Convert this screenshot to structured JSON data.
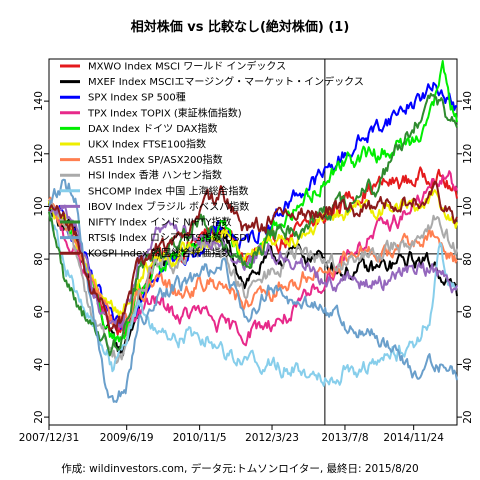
{
  "chart_data": {
    "type": "line",
    "title": "相対株価 vs 比較なし(絶対株価) (1)",
    "footer": "作成: wildinvestors.com, データ元:トムソンロイター, 最終日: 2015/8/20",
    "xlabel": "",
    "ylabel": "",
    "ylim": [
      17,
      156
    ],
    "yticks": [
      20,
      40,
      60,
      80,
      100,
      120,
      140
    ],
    "xlim": [
      0,
      7.72
    ],
    "xticks": [
      {
        "t": 0.0,
        "label": "2007/12/31"
      },
      {
        "t": 1.47,
        "label": "2009/6/19"
      },
      {
        "t": 2.85,
        "label": "2010/11/5"
      },
      {
        "t": 4.22,
        "label": "2012/3/23"
      },
      {
        "t": 5.6,
        "label": "2013/7/8"
      },
      {
        "t": 6.9,
        "label": "2014/11/24"
      }
    ],
    "reference_lines": {
      "h": 82,
      "v_t": 5.22
    },
    "grid": false,
    "legend_position": "top-left",
    "series": [
      {
        "name": "MXWO Index MSCI ワールド インデックス",
        "color": "#e41a1c",
        "width": 2,
        "points": [
          [
            0,
            100
          ],
          [
            0.5,
            90
          ],
          [
            0.8,
            70
          ],
          [
            1.2,
            55
          ],
          [
            1.4,
            52
          ],
          [
            1.7,
            65
          ],
          [
            2.0,
            80
          ],
          [
            2.5,
            83
          ],
          [
            2.85,
            88
          ],
          [
            3.3,
            92
          ],
          [
            3.7,
            80
          ],
          [
            4.2,
            85
          ],
          [
            4.7,
            90
          ],
          [
            5.2,
            95
          ],
          [
            5.6,
            103
          ],
          [
            6.2,
            108
          ],
          [
            6.9,
            110
          ],
          [
            7.3,
            113
          ],
          [
            7.55,
            108
          ],
          [
            7.72,
            103
          ]
        ]
      },
      {
        "name": "MXEF Index MSCIエマージング・マーケット・インデックス",
        "color": "#000000",
        "width": 2,
        "points": [
          [
            0,
            100
          ],
          [
            0.5,
            88
          ],
          [
            0.8,
            68
          ],
          [
            1.2,
            48
          ],
          [
            1.4,
            45
          ],
          [
            1.7,
            62
          ],
          [
            2.0,
            78
          ],
          [
            2.5,
            82
          ],
          [
            2.85,
            86
          ],
          [
            3.3,
            88
          ],
          [
            3.7,
            72
          ],
          [
            4.2,
            80
          ],
          [
            4.7,
            82
          ],
          [
            5.2,
            80
          ],
          [
            5.6,
            75
          ],
          [
            6.2,
            76
          ],
          [
            6.9,
            80
          ],
          [
            7.3,
            78
          ],
          [
            7.55,
            72
          ],
          [
            7.72,
            66
          ]
        ]
      },
      {
        "name": "SPX Index SP 500種",
        "color": "#0000ff",
        "width": 2,
        "points": [
          [
            0,
            100
          ],
          [
            0.5,
            90
          ],
          [
            0.8,
            72
          ],
          [
            1.2,
            55
          ],
          [
            1.4,
            52
          ],
          [
            1.7,
            66
          ],
          [
            2.0,
            76
          ],
          [
            2.5,
            80
          ],
          [
            2.85,
            85
          ],
          [
            3.3,
            92
          ],
          [
            3.7,
            85
          ],
          [
            4.2,
            95
          ],
          [
            4.7,
            105
          ],
          [
            5.2,
            112
          ],
          [
            5.6,
            120
          ],
          [
            6.2,
            130
          ],
          [
            6.9,
            140
          ],
          [
            7.3,
            145
          ],
          [
            7.55,
            143
          ],
          [
            7.72,
            138
          ]
        ]
      },
      {
        "name": "TPX Index TOPIX (東証株価指数)",
        "color": "#e7298a",
        "width": 2,
        "points": [
          [
            0,
            100
          ],
          [
            0.5,
            82
          ],
          [
            0.8,
            70
          ],
          [
            1.2,
            54
          ],
          [
            1.4,
            52
          ],
          [
            1.7,
            60
          ],
          [
            2.0,
            64
          ],
          [
            2.5,
            58
          ],
          [
            2.85,
            60
          ],
          [
            3.3,
            54
          ],
          [
            3.7,
            52
          ],
          [
            4.2,
            56
          ],
          [
            4.7,
            60
          ],
          [
            5.2,
            72
          ],
          [
            5.6,
            82
          ],
          [
            6.2,
            90
          ],
          [
            6.9,
            100
          ],
          [
            7.3,
            108
          ],
          [
            7.55,
            112
          ],
          [
            7.72,
            106
          ]
        ]
      },
      {
        "name": "DAX Index ドイツ DAX指数",
        "color": "#00ee00",
        "width": 2,
        "points": [
          [
            0,
            100
          ],
          [
            0.5,
            88
          ],
          [
            0.8,
            70
          ],
          [
            1.2,
            50
          ],
          [
            1.4,
            48
          ],
          [
            1.7,
            66
          ],
          [
            2.0,
            75
          ],
          [
            2.5,
            80
          ],
          [
            2.85,
            88
          ],
          [
            3.3,
            95
          ],
          [
            3.7,
            76
          ],
          [
            4.2,
            90
          ],
          [
            4.7,
            100
          ],
          [
            5.2,
            110
          ],
          [
            5.6,
            118
          ],
          [
            6.2,
            120
          ],
          [
            6.9,
            125
          ],
          [
            7.3,
            140
          ],
          [
            7.45,
            152
          ],
          [
            7.6,
            140
          ],
          [
            7.72,
            132
          ]
        ]
      },
      {
        "name": "UKX Index FTSE100指数",
        "color": "#eeee00",
        "width": 2,
        "points": [
          [
            0,
            100
          ],
          [
            0.5,
            88
          ],
          [
            0.8,
            74
          ],
          [
            1.2,
            62
          ],
          [
            1.4,
            60
          ],
          [
            1.7,
            72
          ],
          [
            2.0,
            80
          ],
          [
            2.5,
            82
          ],
          [
            2.85,
            86
          ],
          [
            3.3,
            90
          ],
          [
            3.7,
            82
          ],
          [
            4.2,
            88
          ],
          [
            4.7,
            90
          ],
          [
            5.2,
            94
          ],
          [
            5.6,
            98
          ],
          [
            6.2,
            100
          ],
          [
            6.9,
            100
          ],
          [
            7.3,
            104
          ],
          [
            7.55,
            98
          ],
          [
            7.72,
            94
          ]
        ]
      },
      {
        "name": "AS51 Index SP/ASX200指数",
        "color": "#ff7f50",
        "width": 2,
        "points": [
          [
            0,
            100
          ],
          [
            0.5,
            86
          ],
          [
            0.8,
            72
          ],
          [
            1.2,
            56
          ],
          [
            1.4,
            56
          ],
          [
            1.7,
            66
          ],
          [
            2.0,
            70
          ],
          [
            2.5,
            68
          ],
          [
            2.85,
            70
          ],
          [
            3.3,
            72
          ],
          [
            3.7,
            62
          ],
          [
            4.2,
            66
          ],
          [
            4.7,
            72
          ],
          [
            5.2,
            76
          ],
          [
            5.6,
            80
          ],
          [
            6.2,
            82
          ],
          [
            6.9,
            86
          ],
          [
            7.3,
            88
          ],
          [
            7.55,
            82
          ],
          [
            7.72,
            80
          ]
        ]
      },
      {
        "name": "HSI Index 香港 ハンセン指数",
        "color": "#aaaaaa",
        "width": 2,
        "points": [
          [
            0,
            100
          ],
          [
            0.5,
            85
          ],
          [
            0.8,
            60
          ],
          [
            1.2,
            44
          ],
          [
            1.4,
            44
          ],
          [
            1.7,
            66
          ],
          [
            2.0,
            78
          ],
          [
            2.5,
            78
          ],
          [
            2.85,
            84
          ],
          [
            3.3,
            84
          ],
          [
            3.7,
            66
          ],
          [
            4.2,
            75
          ],
          [
            4.7,
            82
          ],
          [
            5.2,
            80
          ],
          [
            5.6,
            78
          ],
          [
            6.2,
            82
          ],
          [
            6.9,
            88
          ],
          [
            7.3,
            96
          ],
          [
            7.55,
            88
          ],
          [
            7.72,
            84
          ]
        ]
      },
      {
        "name": "SHCOMP Index 中国 上海総合指数",
        "color": "#87ceeb",
        "width": 2,
        "points": [
          [
            0,
            100
          ],
          [
            0.3,
            80
          ],
          [
            0.6,
            62
          ],
          [
            0.9,
            52
          ],
          [
            1.2,
            40
          ],
          [
            1.4,
            50
          ],
          [
            1.7,
            60
          ],
          [
            2.0,
            54
          ],
          [
            2.5,
            50
          ],
          [
            2.85,
            52
          ],
          [
            3.3,
            46
          ],
          [
            3.7,
            42
          ],
          [
            4.2,
            40
          ],
          [
            4.7,
            38
          ],
          [
            5.2,
            36
          ],
          [
            5.6,
            38
          ],
          [
            6.2,
            40
          ],
          [
            6.9,
            48
          ],
          [
            7.2,
            58
          ],
          [
            7.4,
            84
          ],
          [
            7.55,
            72
          ],
          [
            7.72,
            70
          ]
        ]
      },
      {
        "name": "IBOV Index ブラジル ボベスパ指数",
        "color": "#9467bd",
        "width": 2,
        "points": [
          [
            0,
            100
          ],
          [
            0.5,
            95
          ],
          [
            0.8,
            70
          ],
          [
            1.2,
            54
          ],
          [
            1.4,
            56
          ],
          [
            1.7,
            78
          ],
          [
            2.0,
            90
          ],
          [
            2.5,
            92
          ],
          [
            2.85,
            90
          ],
          [
            3.3,
            86
          ],
          [
            3.7,
            78
          ],
          [
            4.2,
            84
          ],
          [
            4.7,
            80
          ],
          [
            5.2,
            72
          ],
          [
            5.6,
            72
          ],
          [
            6.2,
            70
          ],
          [
            6.9,
            78
          ],
          [
            7.3,
            76
          ],
          [
            7.55,
            72
          ],
          [
            7.72,
            70
          ]
        ]
      },
      {
        "name": "NIFTY Index インド NIFTY指数",
        "color": "#2e8b2e",
        "width": 2,
        "points": [
          [
            0,
            100
          ],
          [
            0.3,
            72
          ],
          [
            0.6,
            62
          ],
          [
            0.9,
            50
          ],
          [
            1.2,
            46
          ],
          [
            1.4,
            52
          ],
          [
            1.7,
            75
          ],
          [
            2.0,
            82
          ],
          [
            2.5,
            88
          ],
          [
            2.85,
            96
          ],
          [
            3.3,
            86
          ],
          [
            3.7,
            78
          ],
          [
            4.2,
            88
          ],
          [
            4.7,
            92
          ],
          [
            5.2,
            98
          ],
          [
            5.6,
            100
          ],
          [
            6.2,
            108
          ],
          [
            6.9,
            132
          ],
          [
            7.3,
            140
          ],
          [
            7.55,
            134
          ],
          [
            7.72,
            130
          ]
        ]
      },
      {
        "name": "RTSI$ Index ロシア RTS指数(USD)",
        "color": "#6a9fcb",
        "width": 2,
        "points": [
          [
            0,
            100
          ],
          [
            0.3,
            110
          ],
          [
            0.5,
            104
          ],
          [
            0.8,
            60
          ],
          [
            1.1,
            30
          ],
          [
            1.3,
            24
          ],
          [
            1.5,
            34
          ],
          [
            1.7,
            55
          ],
          [
            2.0,
            66
          ],
          [
            2.5,
            70
          ],
          [
            2.85,
            72
          ],
          [
            3.3,
            80
          ],
          [
            3.7,
            58
          ],
          [
            4.2,
            68
          ],
          [
            4.7,
            62
          ],
          [
            5.2,
            62
          ],
          [
            5.6,
            54
          ],
          [
            6.2,
            52
          ],
          [
            6.6,
            44
          ],
          [
            6.9,
            34
          ],
          [
            7.2,
            42
          ],
          [
            7.5,
            40
          ],
          [
            7.72,
            34
          ]
        ]
      },
      {
        "name": "KOSPI Index 韓国総合株価指数",
        "color": "#8b1a1a",
        "width": 2,
        "points": [
          [
            0,
            100
          ],
          [
            0.5,
            90
          ],
          [
            0.8,
            70
          ],
          [
            1.2,
            55
          ],
          [
            1.4,
            58
          ],
          [
            1.7,
            78
          ],
          [
            2.0,
            84
          ],
          [
            2.5,
            88
          ],
          [
            2.85,
            98
          ],
          [
            3.3,
            106
          ],
          [
            3.7,
            90
          ],
          [
            4.2,
            94
          ],
          [
            4.7,
            96
          ],
          [
            5.2,
            98
          ],
          [
            5.6,
            98
          ],
          [
            6.2,
            100
          ],
          [
            6.9,
            102
          ],
          [
            7.3,
            106
          ],
          [
            7.55,
            100
          ],
          [
            7.72,
            96
          ]
        ]
      }
    ]
  }
}
